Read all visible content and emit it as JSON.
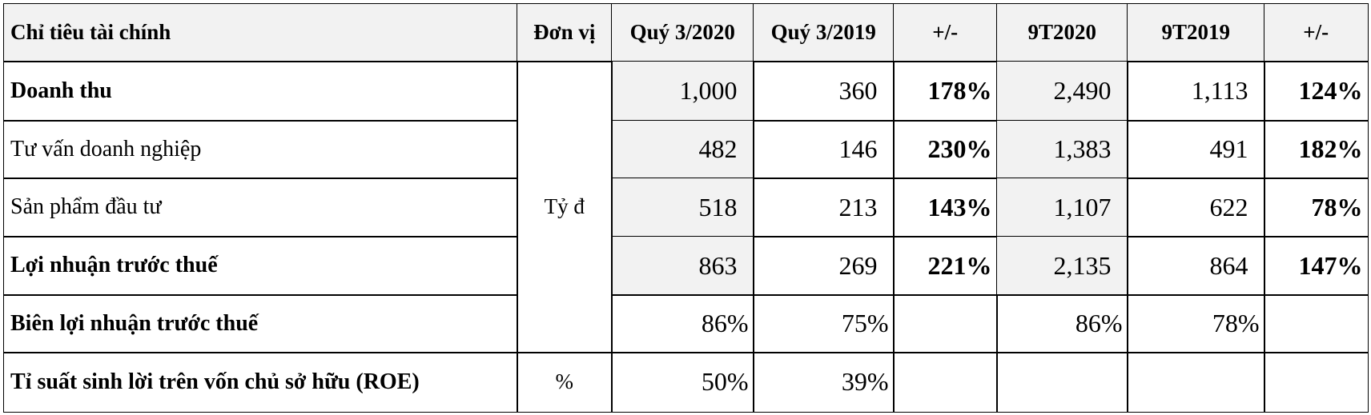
{
  "table": {
    "header": [
      "Chỉ tiêu tài chính",
      "Đơn vị",
      "Quý 3/2020",
      "Quý 3/2019",
      "+/-",
      "9T2020",
      "9T2019",
      "+/-"
    ],
    "units": [
      "Tỷ đ",
      "%"
    ],
    "rows": [
      {
        "label": "Doanh thu",
        "bold": true,
        "values": [
          "1,000",
          "360",
          "178%",
          "2,490",
          "1,113",
          "124%"
        ]
      },
      {
        "label": "Tư vấn doanh nghiệp",
        "bold": false,
        "values": [
          "482",
          "146",
          "230%",
          "1,383",
          "491",
          "182%"
        ]
      },
      {
        "label": "Sản phẩm đầu tư",
        "bold": false,
        "values": [
          "518",
          "213",
          "143%",
          "1,107",
          "622",
          "78%"
        ]
      },
      {
        "label": "Lợi nhuận trước thuế",
        "bold": true,
        "values": [
          "863",
          "269",
          "221%",
          "2,135",
          "864",
          "147%"
        ]
      },
      {
        "label": "Biên lợi nhuận trước thuế",
        "bold": true,
        "values": [
          "86%",
          "75%",
          null,
          "86%",
          "78%",
          null
        ]
      },
      {
        "label": "Tỉ suất sinh lời trên vốn chủ sở hữu (ROE)",
        "bold": true,
        "values": [
          "50%",
          "39%",
          null,
          null,
          null,
          null
        ]
      }
    ]
  }
}
